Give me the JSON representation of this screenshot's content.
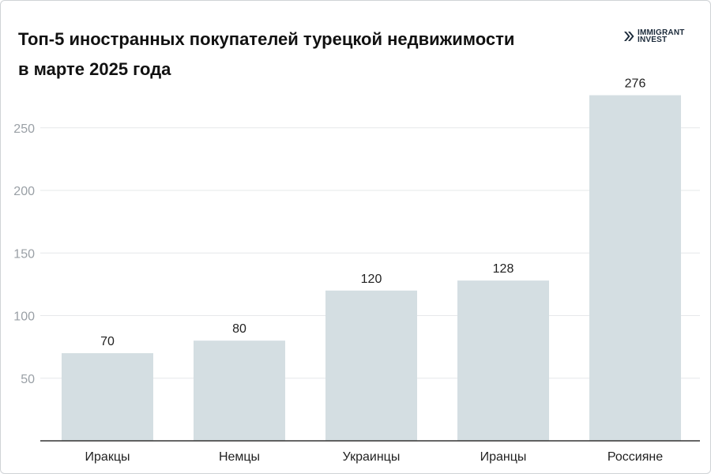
{
  "title": "Топ‑5 иностранных покупателей турецкой недвижимости в марте 2025 года",
  "logo": {
    "line1": "IMMIGRANT",
    "line2": "INVEST",
    "icon": "double-chevron-right-icon",
    "color": "#1b2a3a"
  },
  "colors": {
    "bar": "#d4dee2",
    "grid": "#e6e8ea",
    "axis": "#333333",
    "tick": "#9aa0a6",
    "text": "#222222"
  },
  "chart_data": {
    "type": "bar",
    "title": "Топ‑5 иностранных покупателей турецкой недвижимости в марте 2025 года",
    "xlabel": "",
    "ylabel": "",
    "categories": [
      "Иракцы",
      "Немцы",
      "Украинцы",
      "Иранцы",
      "Россияне"
    ],
    "values": [
      70,
      80,
      120,
      128,
      276
    ],
    "ylim": [
      0,
      285
    ],
    "yticks": [
      50,
      100,
      150,
      200,
      250
    ],
    "grid": true,
    "legend": "none"
  }
}
